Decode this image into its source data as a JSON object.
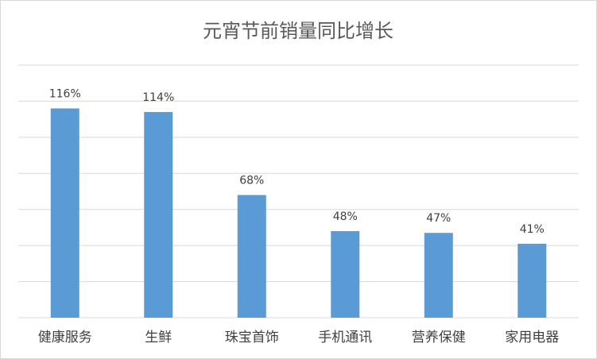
{
  "chart_data": {
    "type": "bar",
    "title": "元宵节前销量同比增长",
    "categories": [
      "健康服务",
      "生鲜",
      "珠宝首饰",
      "手机通讯",
      "营养保健",
      "家用电器"
    ],
    "values": [
      116,
      114,
      68,
      48,
      47,
      41
    ],
    "value_labels": [
      "116%",
      "114%",
      "68%",
      "48%",
      "47%",
      "41%"
    ],
    "color": "#5b9bd5",
    "ylim": [
      0,
      140
    ],
    "yticks": [
      0,
      20,
      40,
      60,
      80,
      100,
      120,
      140
    ],
    "grid": true
  }
}
